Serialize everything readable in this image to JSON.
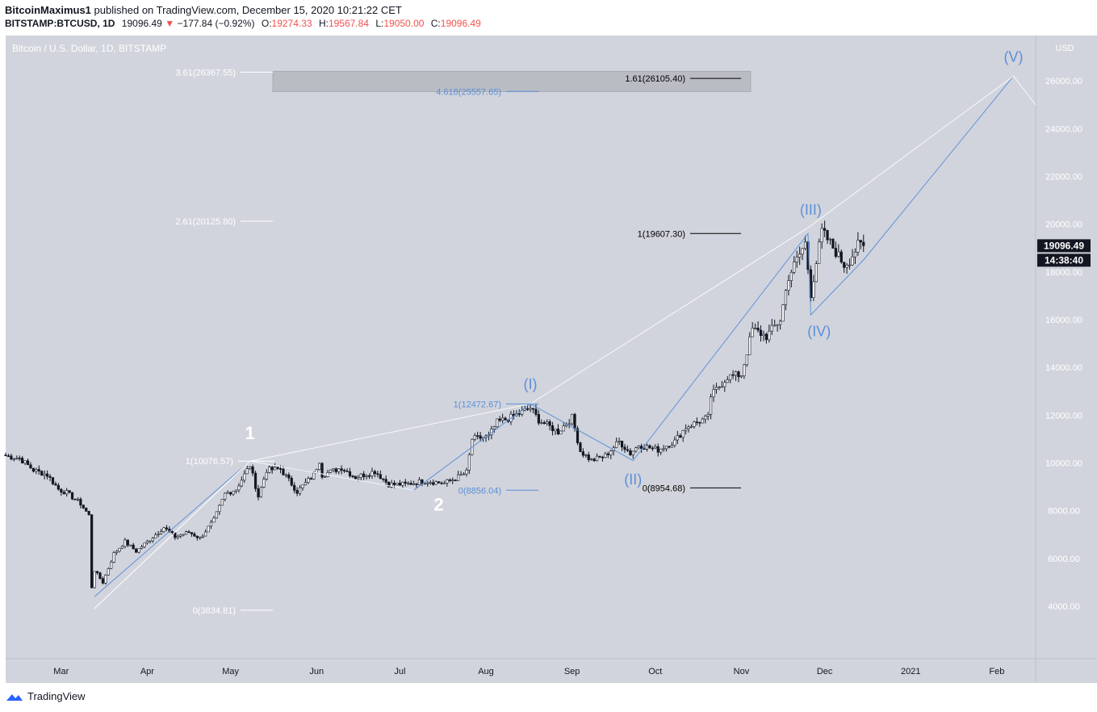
{
  "header": {
    "author": "BitcoinMaximus1",
    "published_text": "published on TradingView.com, December 15, 2020 10:21:22 CET",
    "symbol": "BITSTAMP:BTCUSD, 1D",
    "last": "19096.49",
    "change": "−177.84 (−0.92%)",
    "open_label": "O:",
    "open": "19274.33",
    "high_label": "H:",
    "high": "19567.84",
    "low_label": "L:",
    "low": "19050.00",
    "close_label": "C:",
    "close": "19096.49"
  },
  "brand": {
    "name": "TradingView"
  },
  "colors": {
    "plot_bg": "#d1d4dc",
    "candle": "#131722",
    "wave_blue": "#5b8fd8",
    "wave_white": "#ffffff",
    "fib_black": "#000000",
    "grey_box": "#b8bbc2"
  },
  "chart_data": {
    "type": "candlestick",
    "title": "Bitcoin / U.S. Dollar, 1D, BITSTAMP",
    "currency": "USD",
    "y_ticks": [
      "26000.00",
      "24000.00",
      "22000.00",
      "20000.00",
      "18000.00",
      "16000.00",
      "14000.00",
      "12000.00",
      "10000.00",
      "8000.00",
      "6000.00",
      "4000.00"
    ],
    "ylim": [
      1800,
      27900
    ],
    "x_labels": [
      "Mar",
      "Apr",
      "May",
      "Jun",
      "Jul",
      "Aug",
      "Sep",
      "Oct",
      "Nov",
      "Dec",
      "2021",
      "Feb"
    ],
    "x_label_dates": [
      "2020-03-01",
      "2020-04-01",
      "2020-05-01",
      "2020-06-01",
      "2020-07-01",
      "2020-08-01",
      "2020-09-01",
      "2020-10-01",
      "2020-11-01",
      "2020-12-01",
      "2021-01-01",
      "2021-02-01"
    ],
    "xlim": [
      "2020-02-10",
      "2021-02-15"
    ],
    "price_label": "19096.49",
    "countdown_label": "14:38:40",
    "close_anchors": [
      [
        "2020-02-10",
        10300
      ],
      [
        "2020-02-15",
        10200
      ],
      [
        "2020-02-20",
        9700
      ],
      [
        "2020-02-25",
        9500
      ],
      [
        "2020-02-29",
        8900
      ],
      [
        "2020-03-03",
        8750
      ],
      [
        "2020-03-08",
        8300
      ],
      [
        "2020-03-11",
        7800
      ],
      [
        "2020-03-12",
        4800
      ],
      [
        "2020-03-13",
        5500
      ],
      [
        "2020-03-16",
        5000
      ],
      [
        "2020-03-20",
        6200
      ],
      [
        "2020-03-24",
        6700
      ],
      [
        "2020-03-28",
        6300
      ],
      [
        "2020-04-02",
        6800
      ],
      [
        "2020-04-07",
        7300
      ],
      [
        "2020-04-11",
        6900
      ],
      [
        "2020-04-16",
        7100
      ],
      [
        "2020-04-20",
        6850
      ],
      [
        "2020-04-25",
        7600
      ],
      [
        "2020-04-29",
        8700
      ],
      [
        "2020-05-03",
        8900
      ],
      [
        "2020-05-08",
        9900
      ],
      [
        "2020-05-11",
        8600
      ],
      [
        "2020-05-14",
        9700
      ],
      [
        "2020-05-19",
        9750
      ],
      [
        "2020-05-25",
        8800
      ],
      [
        "2020-05-31",
        9500
      ],
      [
        "2020-06-02",
        10100
      ],
      [
        "2020-06-03",
        9500
      ],
      [
        "2020-06-10",
        9800
      ],
      [
        "2020-06-15",
        9400
      ],
      [
        "2020-06-22",
        9650
      ],
      [
        "2020-06-27",
        9100
      ],
      [
        "2020-07-03",
        9100
      ],
      [
        "2020-07-10",
        9250
      ],
      [
        "2020-07-17",
        9150
      ],
      [
        "2020-07-21",
        9350
      ],
      [
        "2020-07-25",
        9600
      ],
      [
        "2020-07-27",
        11000
      ],
      [
        "2020-08-02",
        11100
      ],
      [
        "2020-08-05",
        11700
      ],
      [
        "2020-08-10",
        11900
      ],
      [
        "2020-08-17",
        12300
      ],
      [
        "2020-08-20",
        11800
      ],
      [
        "2020-08-27",
        11300
      ],
      [
        "2020-09-01",
        11900
      ],
      [
        "2020-09-04",
        10500
      ],
      [
        "2020-09-08",
        10100
      ],
      [
        "2020-09-13",
        10300
      ],
      [
        "2020-09-18",
        10900
      ],
      [
        "2020-09-22",
        10400
      ],
      [
        "2020-09-25",
        10750
      ],
      [
        "2020-10-02",
        10550
      ],
      [
        "2020-10-08",
        10900
      ],
      [
        "2020-10-12",
        11500
      ],
      [
        "2020-10-20",
        11900
      ],
      [
        "2020-10-21",
        12800
      ],
      [
        "2020-10-27",
        13600
      ],
      [
        "2020-11-01",
        13700
      ],
      [
        "2020-11-05",
        15600
      ],
      [
        "2020-11-10",
        15300
      ],
      [
        "2020-11-15",
        16000
      ],
      [
        "2020-11-18",
        17800
      ],
      [
        "2020-11-24",
        19200
      ],
      [
        "2020-11-26",
        17100
      ],
      [
        "2020-11-30",
        19700
      ],
      [
        "2020-12-03",
        19200
      ],
      [
        "2020-12-08",
        18300
      ],
      [
        "2020-12-10",
        18500
      ],
      [
        "2020-12-13",
        19100
      ],
      [
        "2020-12-15",
        19096
      ]
    ],
    "series": [
      {
        "name": "(I)-(V) wave path",
        "points": [
          [
            "2020-03-13",
            4400
          ],
          [
            "2020-05-08",
            10076
          ],
          [
            "2020-07-06",
            8856
          ],
          [
            "2020-08-17",
            12472
          ],
          [
            "2020-09-23",
            10100
          ],
          [
            "2020-11-25",
            19607
          ],
          [
            "2020-11-26",
            16200
          ],
          [
            "2020-12-15",
            18500
          ],
          [
            "2021-02-07",
            26200
          ]
        ]
      },
      {
        "name": "upper trendline",
        "points": [
          [
            "2020-05-08",
            10076
          ],
          [
            "2020-08-17",
            12472
          ],
          [
            "2020-11-25",
            19850
          ],
          [
            "2021-02-07",
            26200
          ],
          [
            "2021-02-15",
            25000
          ]
        ]
      }
    ],
    "wave_labels": [
      {
        "text": "1",
        "date": "2020-05-08",
        "price": 11000,
        "color": "white"
      },
      {
        "text": "2",
        "date": "2020-07-15",
        "price": 8000,
        "color": "white"
      },
      {
        "text": "(I)",
        "date": "2020-08-17",
        "price": 13100,
        "color": "blue"
      },
      {
        "text": "(II)",
        "date": "2020-09-23",
        "price": 9100,
        "color": "blue"
      },
      {
        "text": "(III)",
        "date": "2020-11-26",
        "price": 20400,
        "color": "blue"
      },
      {
        "text": "(IV)",
        "date": "2020-11-29",
        "price": 15300,
        "color": "blue"
      },
      {
        "text": "(V)",
        "date": "2021-02-07",
        "price": 26800,
        "color": "blue"
      }
    ],
    "fib_levels": [
      {
        "label": "3.61(26367.55)",
        "price": 26367.55,
        "color": "white"
      },
      {
        "label": "2.61(20125.80)",
        "price": 20125.8,
        "color": "white"
      },
      {
        "label": "1(10076.57)",
        "price": 10076.57,
        "color": "white"
      },
      {
        "label": "0(3834.81)",
        "price": 3834.81,
        "color": "white"
      },
      {
        "label": "4.618(25557.65)",
        "price": 25557.65,
        "color": "blue"
      },
      {
        "label": "1(12472.67)",
        "price": 12472.67,
        "color": "blue"
      },
      {
        "label": "0(8856.04)",
        "price": 8856.04,
        "color": "blue"
      },
      {
        "label": "1.61(26105.40)",
        "price": 26105.4,
        "color": "black"
      },
      {
        "label": "1(19607.30)",
        "price": 19607.3,
        "color": "black"
      },
      {
        "label": "0(8954.68)",
        "price": 8954.68,
        "color": "black"
      }
    ],
    "target_box": {
      "price_top": 26400,
      "price_bottom": 25550
    }
  }
}
